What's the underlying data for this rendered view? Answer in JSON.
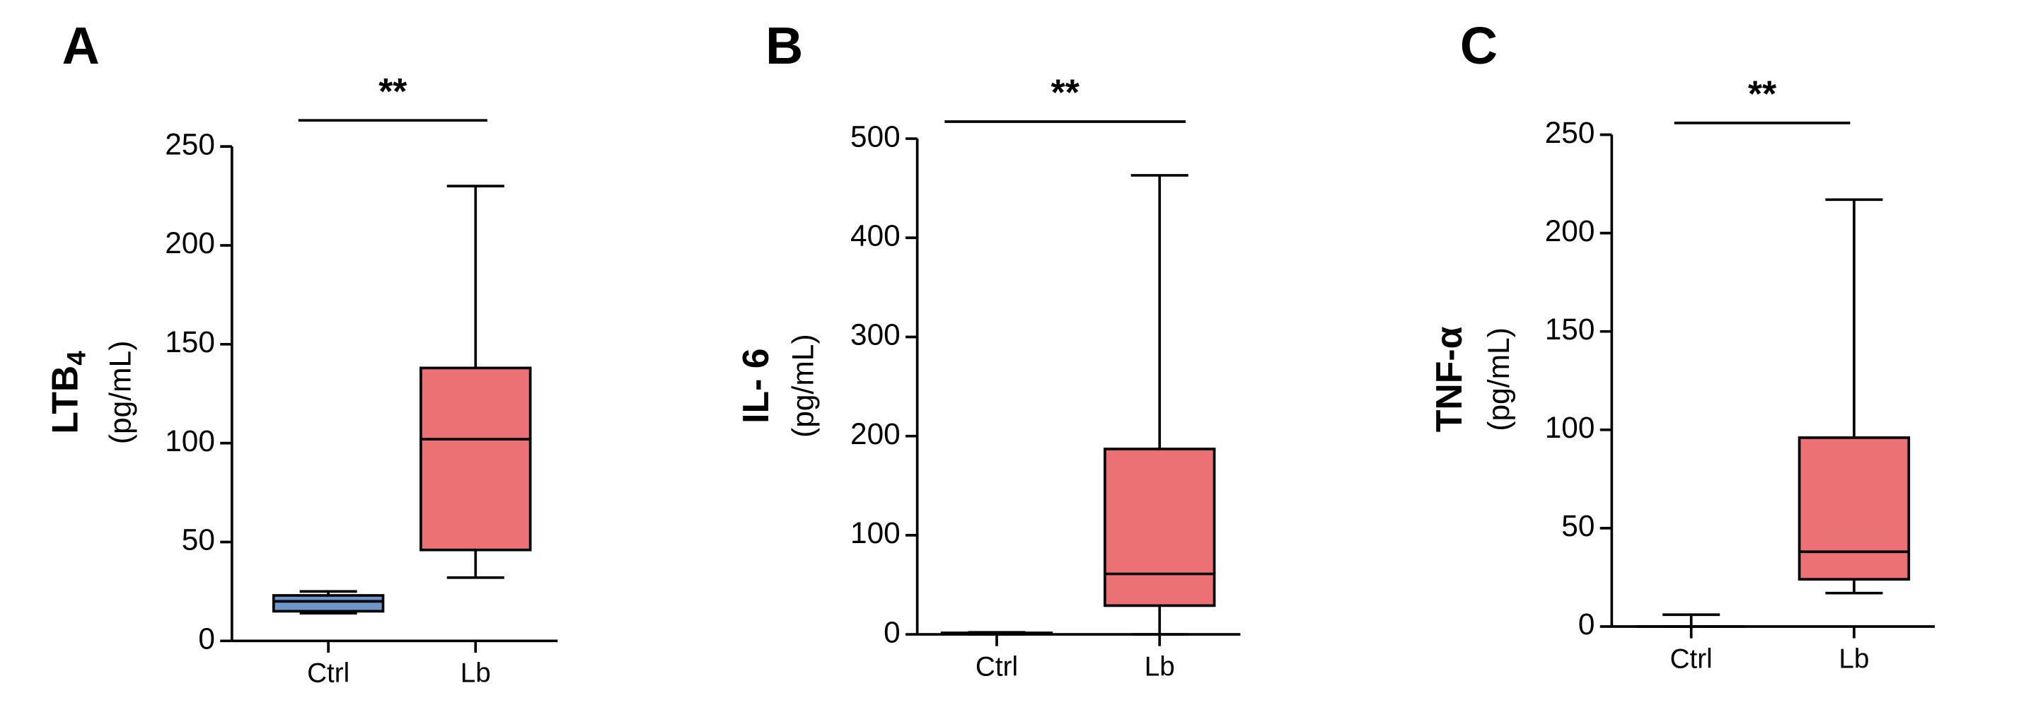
{
  "chart_data": [
    {
      "type": "box",
      "panel": "A",
      "ylabel": "LTB",
      "ylabel_sub": "4",
      "ylabel_unit": "(pg/mL)",
      "significance": "**",
      "categories": [
        "Ctrl",
        "Lb"
      ],
      "colors": [
        "#7095c9",
        "#ec7174"
      ],
      "stats": [
        {
          "min": 14,
          "q1": 15,
          "median": 20,
          "q3": 23,
          "max": 25
        },
        {
          "min": 32,
          "q1": 46,
          "median": 102,
          "q3": 138,
          "max": 230
        }
      ],
      "ylim": [
        0,
        250
      ],
      "yticks": [
        0,
        50,
        100,
        150,
        200,
        250
      ]
    },
    {
      "type": "box",
      "panel": "B",
      "ylabel": "IL- 6",
      "ylabel_unit": "(pg/mL)",
      "significance": "**",
      "categories": [
        "Ctrl",
        "Lb"
      ],
      "colors": [
        "#7095c9",
        "#ec7174"
      ],
      "stats": [
        {
          "min": 0,
          "q1": 0.5,
          "median": 1,
          "q3": 1.5,
          "max": 2
        },
        {
          "min": 0,
          "q1": 29,
          "median": 61,
          "q3": 187,
          "max": 463
        }
      ],
      "ylim": [
        0,
        500
      ],
      "yticks": [
        0,
        100,
        200,
        300,
        400,
        500
      ]
    },
    {
      "type": "box",
      "panel": "C",
      "ylabel": "TNF-α",
      "ylabel_unit": "(pg/mL)",
      "significance": "**",
      "categories": [
        "Ctrl",
        "Lb"
      ],
      "colors": [
        "#7095c9",
        "#ec7174"
      ],
      "stats": [
        {
          "min": 0,
          "q1": 0,
          "median": 0,
          "q3": 0,
          "max": 6
        },
        {
          "min": 17,
          "q1": 24,
          "median": 38,
          "q3": 96,
          "max": 217
        }
      ],
      "ylim": [
        0,
        250
      ],
      "yticks": [
        0,
        50,
        100,
        150,
        200,
        250
      ]
    }
  ]
}
